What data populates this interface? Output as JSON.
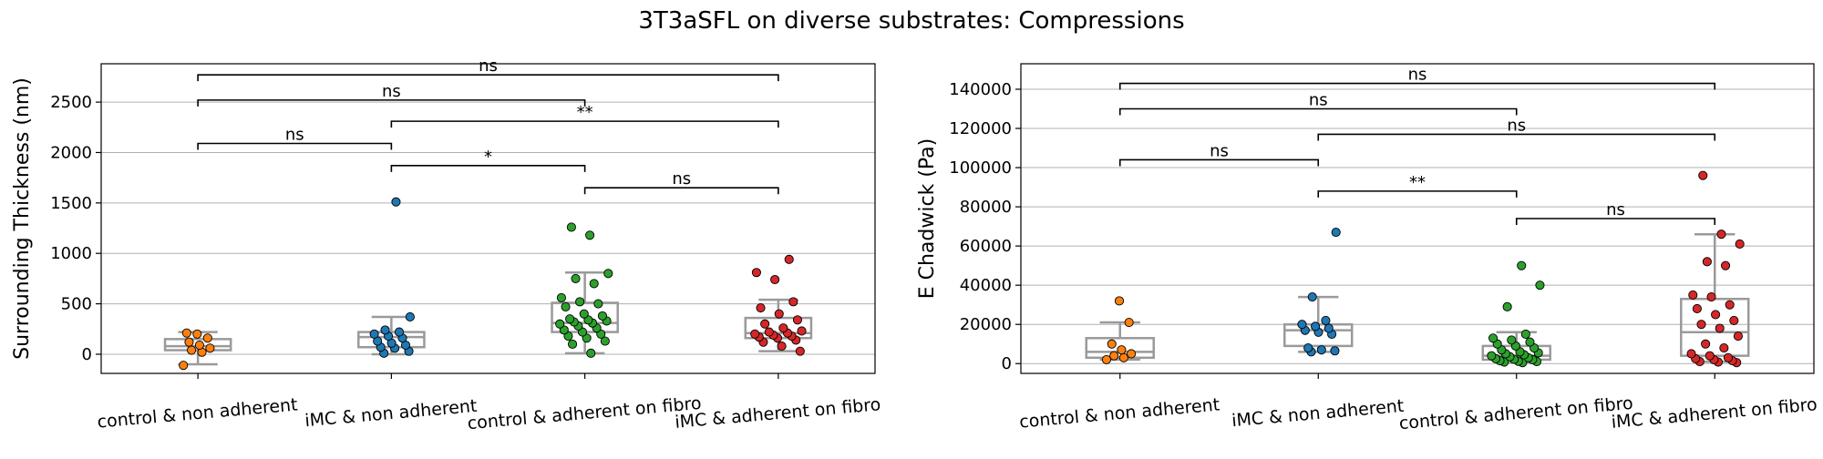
{
  "figure": {
    "suptitle": "3T3aSFL on diverse substrates: Compressions"
  },
  "colors": {
    "control & non adherent": "#ff7f0e",
    "iMC & non adherent": "#1f77b4",
    "control & adherent on fibro": "#2ca02c",
    "iMC & adherent on fibro": "#d62728",
    "box": "#9a9a9a",
    "grid": "#b0b0b0"
  },
  "chart_data": [
    {
      "type": "box",
      "ylabel": "Surrounding Thickness (nm)",
      "xlabel": "",
      "ylim": [
        -190,
        2880
      ],
      "yticks": [
        0,
        500,
        1000,
        1500,
        2000,
        2500
      ],
      "grid": "horizontal",
      "categories": [
        "control & non adherent",
        "iMC & non adherent",
        "control & adherent on fibro",
        "iMC & adherent on fibro"
      ],
      "boxes": [
        {
          "q1": 40,
          "median": 80,
          "q3": 150,
          "whisker_low": -100,
          "whisker_high": 220
        },
        {
          "q1": 70,
          "median": 170,
          "q3": 220,
          "whisker_low": 0,
          "whisker_high": 370
        },
        {
          "q1": 220,
          "median": 310,
          "q3": 510,
          "whisker_low": 10,
          "whisker_high": 810
        },
        {
          "q1": 160,
          "median": 210,
          "q3": 360,
          "whisker_low": 30,
          "whisker_high": 540
        }
      ],
      "points": [
        [
          -110,
          20,
          40,
          60,
          90,
          120,
          160,
          200,
          210
        ],
        [
          10,
          30,
          60,
          70,
          90,
          110,
          130,
          160,
          180,
          200,
          220,
          240,
          370,
          1510
        ],
        [
          10,
          100,
          130,
          160,
          180,
          200,
          220,
          240,
          260,
          280,
          300,
          310,
          320,
          330,
          340,
          350,
          380,
          400,
          470,
          500,
          520,
          560,
          700,
          750,
          800,
          1180,
          1260
        ],
        [
          30,
          80,
          120,
          140,
          160,
          170,
          180,
          190,
          200,
          210,
          220,
          230,
          260,
          300,
          340,
          400,
          460,
          520,
          740,
          810,
          940
        ]
      ],
      "annotations": [
        {
          "from": 0,
          "to": 3,
          "label": "ns",
          "y": 2770
        },
        {
          "from": 0,
          "to": 2,
          "label": "ns",
          "y": 2520
        },
        {
          "from": 1,
          "to": 3,
          "label": "**",
          "y": 2310
        },
        {
          "from": 0,
          "to": 1,
          "label": "ns",
          "y": 2090
        },
        {
          "from": 1,
          "to": 2,
          "label": "*",
          "y": 1870
        },
        {
          "from": 2,
          "to": 3,
          "label": "ns",
          "y": 1650
        }
      ]
    },
    {
      "type": "box",
      "ylabel": "E Chadwick (Pa)",
      "xlabel": "",
      "ylim": [
        -5000,
        153000
      ],
      "yticks": [
        0,
        20000,
        40000,
        60000,
        80000,
        100000,
        120000,
        140000
      ],
      "grid": "horizontal",
      "categories": [
        "control & non adherent",
        "iMC & non adherent",
        "control & adherent on fibro",
        "iMC & adherent on fibro"
      ],
      "boxes": [
        {
          "q1": 3000,
          "median": 6000,
          "q3": 13000,
          "whisker_low": 2000,
          "whisker_high": 21000
        },
        {
          "q1": 9000,
          "median": 17000,
          "q3": 20000,
          "whisker_low": 6000,
          "whisker_high": 34000
        },
        {
          "q1": 2000,
          "median": 4000,
          "q3": 9000,
          "whisker_low": 500,
          "whisker_high": 16000
        },
        {
          "q1": 4000,
          "median": 16000,
          "q3": 33000,
          "whisker_low": 1000,
          "whisker_high": 66000
        }
      ],
      "points": [
        [
          2000,
          3000,
          4000,
          5000,
          7000,
          10000,
          21000,
          32000
        ],
        [
          6000,
          6500,
          7000,
          8000,
          15000,
          16000,
          17000,
          18000,
          19000,
          20000,
          22000,
          34000,
          67000
        ],
        [
          500,
          800,
          1000,
          1200,
          1500,
          2000,
          2200,
          2500,
          3000,
          3500,
          4000,
          4500,
          5000,
          5500,
          6000,
          7000,
          8000,
          9000,
          10000,
          11000,
          12000,
          13000,
          15000,
          29000,
          40000,
          50000
        ],
        [
          500,
          800,
          1000,
          1500,
          2000,
          2500,
          3000,
          4000,
          5000,
          8000,
          10000,
          14000,
          18000,
          20000,
          22000,
          25000,
          28000,
          30000,
          34000,
          35000,
          50000,
          52000,
          61000,
          66000,
          96000
        ]
      ],
      "annotations": [
        {
          "from": 0,
          "to": 3,
          "label": "ns",
          "y": 143000
        },
        {
          "from": 0,
          "to": 2,
          "label": "ns",
          "y": 130000
        },
        {
          "from": 1,
          "to": 3,
          "label": "ns",
          "y": 117000
        },
        {
          "from": 0,
          "to": 1,
          "label": "ns",
          "y": 104000
        },
        {
          "from": 1,
          "to": 2,
          "label": "**",
          "y": 88000
        },
        {
          "from": 2,
          "to": 3,
          "label": "ns",
          "y": 74000
        }
      ]
    }
  ]
}
